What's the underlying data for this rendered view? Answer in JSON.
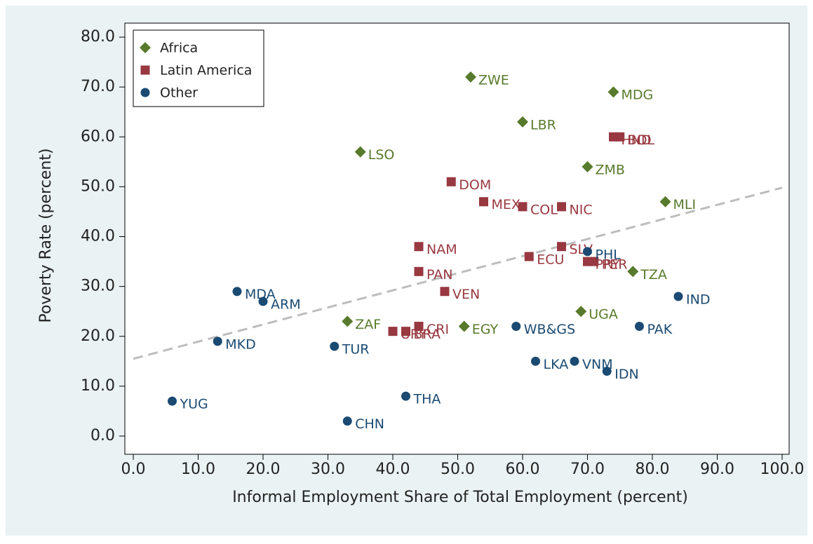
{
  "chart_data": {
    "type": "scatter",
    "xlabel": "Informal Employment Share of Total Employment (percent)",
    "ylabel": "Poverty Rate (percent)",
    "xlim": [
      0,
      100
    ],
    "ylim": [
      0,
      80
    ],
    "xticks": [
      {
        "value": 0,
        "label": "0.0"
      },
      {
        "value": 10,
        "label": "10.0"
      },
      {
        "value": 20,
        "label": "20.0"
      },
      {
        "value": 30,
        "label": "30.0"
      },
      {
        "value": 40,
        "label": "40.0"
      },
      {
        "value": 50,
        "label": "50.0"
      },
      {
        "value": 60,
        "label": "60.0"
      },
      {
        "value": 70,
        "label": "70.0"
      },
      {
        "value": 80,
        "label": "80.0"
      },
      {
        "value": 90,
        "label": "90.0"
      },
      {
        "value": 100,
        "label": "100.0"
      }
    ],
    "yticks": [
      {
        "value": 0,
        "label": "0.0"
      },
      {
        "value": 10,
        "label": "10.0"
      },
      {
        "value": 20,
        "label": "20.0"
      },
      {
        "value": 30,
        "label": "30.0"
      },
      {
        "value": 40,
        "label": "40.0"
      },
      {
        "value": 50,
        "label": "50.0"
      },
      {
        "value": 60,
        "label": "60.0"
      },
      {
        "value": 70,
        "label": "70.0"
      },
      {
        "value": 80,
        "label": "80.0"
      }
    ],
    "legend": "top-left",
    "series": [
      {
        "name": "Africa",
        "color": "#587a2c",
        "marker": "diamond",
        "x": [
          52,
          74,
          60,
          35,
          70,
          82,
          77,
          69,
          33,
          51
        ],
        "y": [
          72,
          69,
          63,
          57,
          54,
          47,
          33,
          25,
          23,
          22
        ],
        "labels": [
          "ZWE",
          "MDG",
          "LBR",
          "LSO",
          "ZMB",
          "MLI",
          "TZA",
          "UGA",
          "ZAF",
          "EGY"
        ]
      },
      {
        "name": "Latin America",
        "color": "#983840",
        "marker": "square",
        "x": [
          74,
          75,
          49,
          54,
          60,
          66,
          44,
          66,
          61,
          70,
          71,
          44,
          48,
          44,
          40,
          42
        ],
        "y": [
          60,
          60,
          51,
          47,
          46,
          46,
          38,
          38,
          36,
          35,
          35,
          33,
          29,
          22,
          21,
          21
        ],
        "labels": [
          "HND",
          "BOL",
          "DOM",
          "MEX",
          "COL",
          "NIC",
          "NAM",
          "SLV",
          "ECU",
          "PRY",
          "PER",
          "PAN",
          "VEN",
          "CRI",
          "URY",
          "BRA"
        ]
      },
      {
        "name": "Other",
        "color": "#1b4a72",
        "marker": "circle",
        "x": [
          70,
          16,
          20,
          84,
          59,
          78,
          13,
          31,
          62,
          68,
          73,
          42,
          6,
          33
        ],
        "y": [
          37,
          29,
          27,
          28,
          22,
          22,
          19,
          18,
          15,
          15,
          13,
          8,
          7,
          3
        ],
        "labels": [
          "PHL",
          "MDA",
          "ARM",
          "IND",
          "WB&GS",
          "PAK",
          "MKD",
          "TUR",
          "LKA",
          "VNM",
          "IDN",
          "THA",
          "YUG",
          "CHN"
        ]
      }
    ],
    "fit_line": {
      "color": "#bdbdbd",
      "x": [
        0,
        100
      ],
      "y": [
        15.5,
        49.8
      ]
    }
  }
}
